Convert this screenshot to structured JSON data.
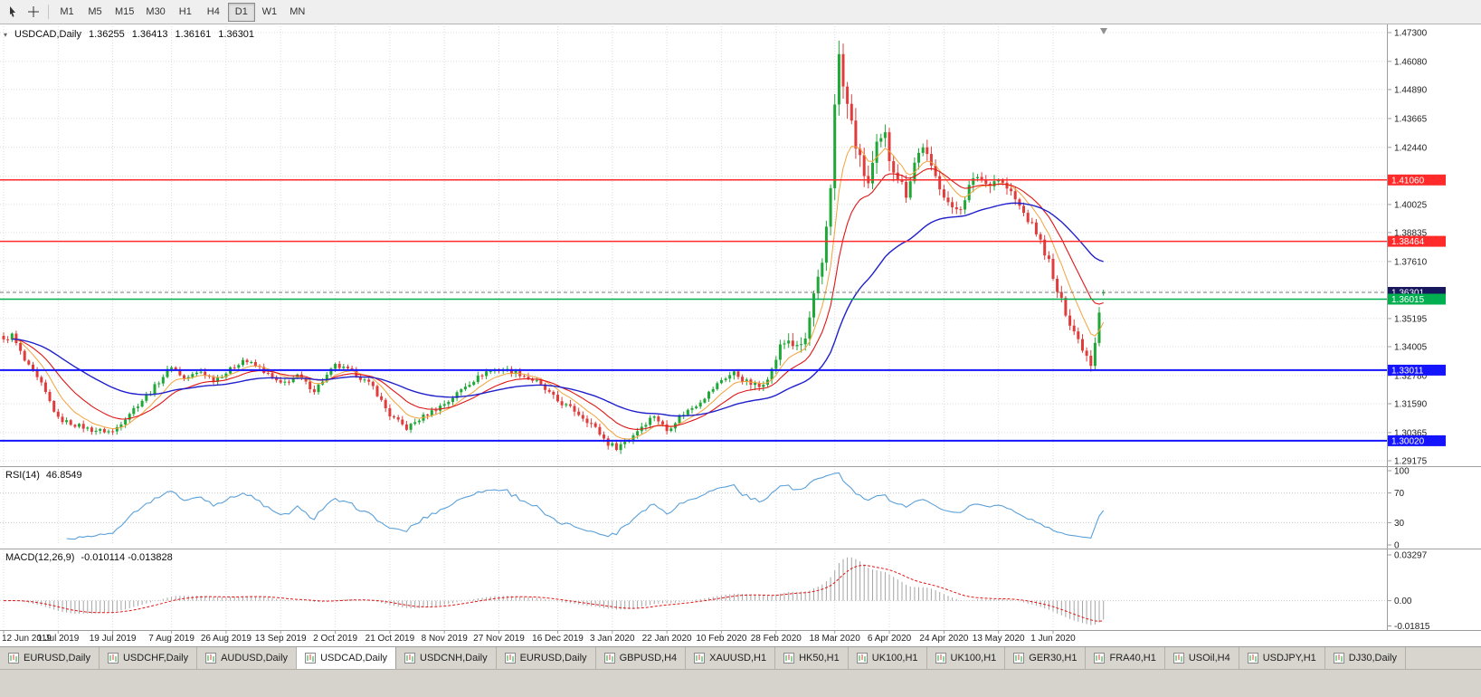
{
  "toolbar": {
    "tools": [
      {
        "name": "cursor-tool"
      },
      {
        "name": "crosshair-tool"
      }
    ],
    "timeframes": [
      "M1",
      "M5",
      "M15",
      "M30",
      "H1",
      "H4",
      "D1",
      "W1",
      "MN"
    ],
    "active": "D1"
  },
  "chart": {
    "title": "USDCAD,Daily",
    "open": "1.36255",
    "high": "1.36413",
    "low": "1.36161",
    "close": "1.36301"
  },
  "rsi": {
    "label": "RSI(14)",
    "value": "46.8549"
  },
  "macd": {
    "label": "MACD(12,26,9)",
    "values": "-0.010114 -0.013828"
  },
  "tabbar": {
    "active_index": 3,
    "tabs": [
      "EURUSD,Daily",
      "USDCHF,Daily",
      "AUDUSD,Daily",
      "USDCAD,Daily",
      "USDCNH,Daily",
      "EURUSD,Daily",
      "GBPUSD,H4",
      "XAUUSD,H1",
      "HK50,H1",
      "UK100,H1",
      "UK100,H1",
      "GER30,H1",
      "FRA40,H1",
      "USOil,H4",
      "USDJPY,H1",
      "DJ30,Daily"
    ]
  },
  "chart_data": {
    "type": "candlestick",
    "symbol": "USDCAD",
    "timeframe": "Daily",
    "current_ohlc": [
      1.36255,
      1.36413,
      1.36161,
      1.36301
    ],
    "bars": 263,
    "y_ticks": [
      "1.47300",
      "1.46080",
      "1.44890",
      "1.43665",
      "1.42440",
      "1.40025",
      "1.38835",
      "1.37610",
      "1.35195",
      "1.34005",
      "1.32780",
      "1.31590",
      "1.30365",
      "1.29175"
    ],
    "grid_hidden": [
      1.41215,
      1.36385
    ],
    "dates": [
      "12 Jun 2019",
      "1 Jul 2019",
      "19 Jul 2019",
      "7 Aug 2019",
      "26 Aug 2019",
      "13 Sep 2019",
      "2 Oct 2019",
      "21 Oct 2019",
      "8 Nov 2019",
      "27 Nov 2019",
      "16 Dec 2019",
      "3 Jan 2020",
      "22 Jan 2020",
      "10 Feb 2020",
      "28 Feb 2020",
      "18 Mar 2020",
      "6 Apr 2020",
      "24 Apr 2020",
      "13 May 2020",
      "1 Jun 2020"
    ],
    "label_bars": [
      0,
      13,
      26,
      40,
      53,
      66,
      79,
      92,
      105,
      118,
      132,
      145,
      158,
      171,
      184,
      198,
      211,
      224,
      237,
      250
    ],
    "hlines": [
      {
        "price": 1.4106,
        "label": "1.41060",
        "color": "#ff2a2a",
        "width": 1.5
      },
      {
        "price": 1.38464,
        "label": "1.38464",
        "color": "#ff2a2a",
        "width": 1.5
      },
      {
        "price": 1.36015,
        "label": "1.36015",
        "color": "#00b050",
        "width": 1.5
      },
      {
        "price": 1.33011,
        "label": "1.33011",
        "color": "#1414ff",
        "width": 2
      },
      {
        "price": 1.3002,
        "label": "1.30020",
        "color": "#1414ff",
        "width": 2
      }
    ],
    "current_price": {
      "value": 1.36301,
      "label": "1.36301",
      "badge_bg": "#18185e"
    },
    "keypoints": [
      [
        0,
        1.3425
      ],
      [
        2,
        1.345
      ],
      [
        5,
        1.334
      ],
      [
        9,
        1.324
      ],
      [
        13,
        1.3095
      ],
      [
        17,
        1.307
      ],
      [
        21,
        1.3048
      ],
      [
        26,
        1.304
      ],
      [
        30,
        1.312
      ],
      [
        35,
        1.321
      ],
      [
        40,
        1.332
      ],
      [
        43,
        1.3265
      ],
      [
        47,
        1.3295
      ],
      [
        50,
        1.326
      ],
      [
        53,
        1.329
      ],
      [
        57,
        1.3345
      ],
      [
        61,
        1.331
      ],
      [
        66,
        1.324
      ],
      [
        70,
        1.3275
      ],
      [
        74,
        1.3215
      ],
      [
        79,
        1.332
      ],
      [
        83,
        1.3295
      ],
      [
        88,
        1.323
      ],
      [
        92,
        1.311
      ],
      [
        96,
        1.3055
      ],
      [
        100,
        1.3105
      ],
      [
        106,
        1.317
      ],
      [
        110,
        1.3235
      ],
      [
        115,
        1.3295
      ],
      [
        119,
        1.3305
      ],
      [
        123,
        1.3285
      ],
      [
        127,
        1.325
      ],
      [
        132,
        1.317
      ],
      [
        136,
        1.313
      ],
      [
        140,
        1.3075
      ],
      [
        144,
        1.299
      ],
      [
        146,
        1.2975
      ],
      [
        149,
        1.301
      ],
      [
        152,
        1.3065
      ],
      [
        155,
        1.311
      ],
      [
        158,
        1.3045
      ],
      [
        161,
        1.3105
      ],
      [
        165,
        1.3155
      ],
      [
        168,
        1.3205
      ],
      [
        171,
        1.326
      ],
      [
        174,
        1.329
      ],
      [
        177,
        1.325
      ],
      [
        180,
        1.323
      ],
      [
        183,
        1.33
      ],
      [
        185,
        1.34
      ],
      [
        187,
        1.343
      ],
      [
        189,
        1.339
      ],
      [
        191,
        1.343
      ],
      [
        193,
        1.361
      ],
      [
        195,
        1.373
      ],
      [
        197,
        1.408
      ],
      [
        198,
        1.445
      ],
      [
        199,
        1.462
      ],
      [
        200,
        1.45
      ],
      [
        202,
        1.434
      ],
      [
        204,
        1.418
      ],
      [
        206,
        1.409
      ],
      [
        208,
        1.424
      ],
      [
        210,
        1.429
      ],
      [
        211,
        1.42
      ],
      [
        213,
        1.412
      ],
      [
        215,
        1.405
      ],
      [
        217,
        1.418
      ],
      [
        219,
        1.4255
      ],
      [
        221,
        1.415
      ],
      [
        224,
        1.405
      ],
      [
        226,
        1.3975
      ],
      [
        228,
        1.3995
      ],
      [
        230,
        1.4075
      ],
      [
        232,
        1.4125
      ],
      [
        234,
        1.409
      ],
      [
        237,
        1.411
      ],
      [
        240,
        1.405
      ],
      [
        243,
        1.3965
      ],
      [
        246,
        1.3885
      ],
      [
        249,
        1.376
      ],
      [
        250,
        1.368
      ],
      [
        252,
        1.359
      ],
      [
        254,
        1.3505
      ],
      [
        256,
        1.343
      ],
      [
        258,
        1.3365
      ],
      [
        259,
        1.333
      ],
      [
        260,
        1.3425
      ],
      [
        261,
        1.3555
      ],
      [
        262,
        1.363
      ]
    ],
    "wick_amp": [
      [
        0,
        0.0025
      ],
      [
        120,
        0.0025
      ],
      [
        140,
        0.003
      ],
      [
        150,
        0.003
      ],
      [
        170,
        0.0025
      ],
      [
        186,
        0.0045
      ],
      [
        192,
        0.0065
      ],
      [
        197,
        0.0095
      ],
      [
        201,
        0.01
      ],
      [
        206,
        0.0085
      ],
      [
        214,
        0.006
      ],
      [
        228,
        0.005
      ],
      [
        242,
        0.0042
      ],
      [
        255,
        0.0045
      ],
      [
        262,
        0.0035
      ]
    ],
    "ma_periods": {
      "fast": 8,
      "mid": 17,
      "slow": 45
    },
    "rsi_axis": [
      "100",
      "70",
      "30",
      "0"
    ],
    "rsi_levels": [
      70,
      30
    ],
    "rsi_period": 14,
    "macd_axis": [
      {
        "label": "0.03297",
        "v": 0.03297
      },
      {
        "label": "0.00",
        "v": 0
      },
      {
        "label": "-0.01815",
        "v": -0.01815
      }
    ],
    "colors": {
      "up": "#1fa737",
      "down": "#e03c3c",
      "ma_fast": "#f2a33c",
      "ma_mid": "#e01616",
      "ma_slow": "#2020cc",
      "rsi": "#5ba0d9",
      "macd_hist": "#a4a4a4",
      "macd_signal": "#e01616",
      "grid": "#dcdcdc"
    }
  }
}
